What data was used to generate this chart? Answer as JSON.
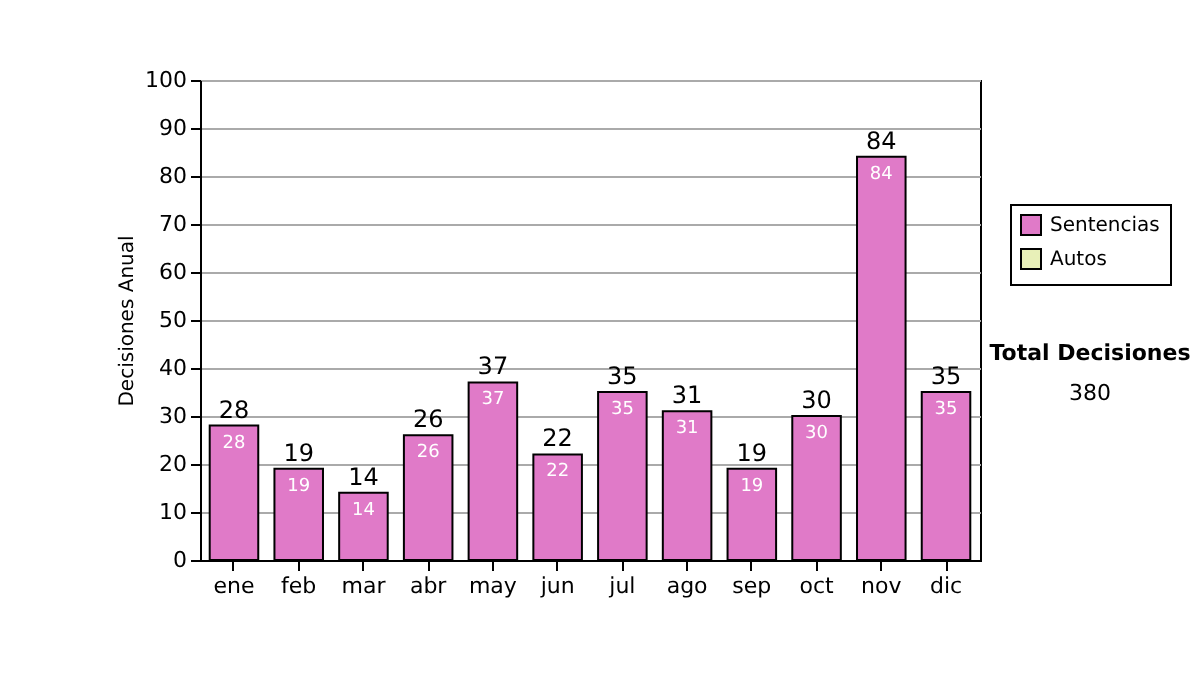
{
  "chart_data": {
    "type": "bar",
    "ylabel": "Decisiones Anual",
    "categories": [
      "ene",
      "feb",
      "mar",
      "abr",
      "may",
      "jun",
      "jul",
      "ago",
      "sep",
      "oct",
      "nov",
      "dic"
    ],
    "series": [
      {
        "name": "Sentencias",
        "color": "#e07ac8",
        "values": [
          28,
          19,
          14,
          26,
          37,
          22,
          35,
          31,
          19,
          30,
          84,
          35
        ]
      },
      {
        "name": "Autos",
        "color": "#e8f0b8",
        "values": [
          null,
          null,
          null,
          null,
          null,
          null,
          null,
          null,
          null,
          null,
          null,
          null
        ]
      }
    ],
    "ylim": [
      0,
      100
    ],
    "yticks": [
      0,
      10,
      20,
      30,
      40,
      50,
      60,
      70,
      80,
      90,
      100
    ],
    "totals": [
      "28",
      "19",
      "14",
      "26",
      "37",
      "22",
      "35",
      "31",
      "19",
      "30",
      "84",
      "35"
    ],
    "grid": "y",
    "legend": "right",
    "data_labels": true,
    "annotations": [
      "Total Decisiones",
      "380"
    ]
  }
}
